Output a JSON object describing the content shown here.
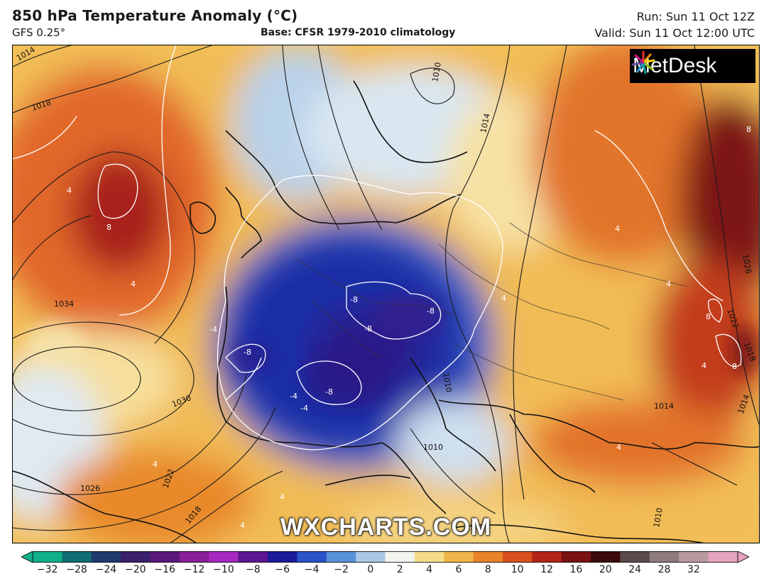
{
  "header": {
    "title": "850 hPa Temperature Anomaly (°C)",
    "model": "GFS 0.25°",
    "base": "Base: CFSR 1979-2010 climatology",
    "run": "Run: Sun 11 Oct 12Z",
    "valid": "Valid: Sun 11 Oct 12:00 UTC"
  },
  "logo": {
    "text": "MetDesk",
    "icon": "metdesk-starburst-icon"
  },
  "watermark": "WXCHARTS.COM",
  "map": {
    "isobar_labels": [
      "1014",
      "1018",
      "1010",
      "1014",
      "1034",
      "1030",
      "1026",
      "1022",
      "1018",
      "1010",
      "1022",
      "1018",
      "1014",
      "1026",
      "1014",
      "1010",
      "1010"
    ],
    "anomaly_labels": [
      "8",
      "4",
      "4",
      "-4",
      "-8",
      "-8",
      "-8",
      "-8",
      "-8",
      "-4",
      "-4",
      "4",
      "4",
      "8",
      "8",
      "8",
      "4",
      "4",
      "4",
      "4",
      "4",
      "4"
    ]
  },
  "colorbar": {
    "ticks": [
      "−32",
      "−28",
      "−24",
      "−20",
      "−16",
      "−12",
      "−10",
      "−8",
      "−6",
      "−4",
      "−2",
      "0",
      "2",
      "4",
      "6",
      "8",
      "10",
      "12",
      "16",
      "20",
      "24",
      "28",
      "32"
    ],
    "colors": [
      "#10b08a",
      "#0e6e74",
      "#1f3a6e",
      "#3a1f6a",
      "#5a1a7a",
      "#8a1f9a",
      "#a62ac0",
      "#5b1690",
      "#1d1a9a",
      "#2a53c8",
      "#5a92d8",
      "#a9c8e6",
      "#f3f3ef",
      "#f4dc8c",
      "#f0b54a",
      "#e8832a",
      "#d9501e",
      "#b52419",
      "#7a1214",
      "#3a0a0c",
      "#5a4a4a",
      "#8e7b7b",
      "#b899a0",
      "#e6a3c0"
    ]
  }
}
